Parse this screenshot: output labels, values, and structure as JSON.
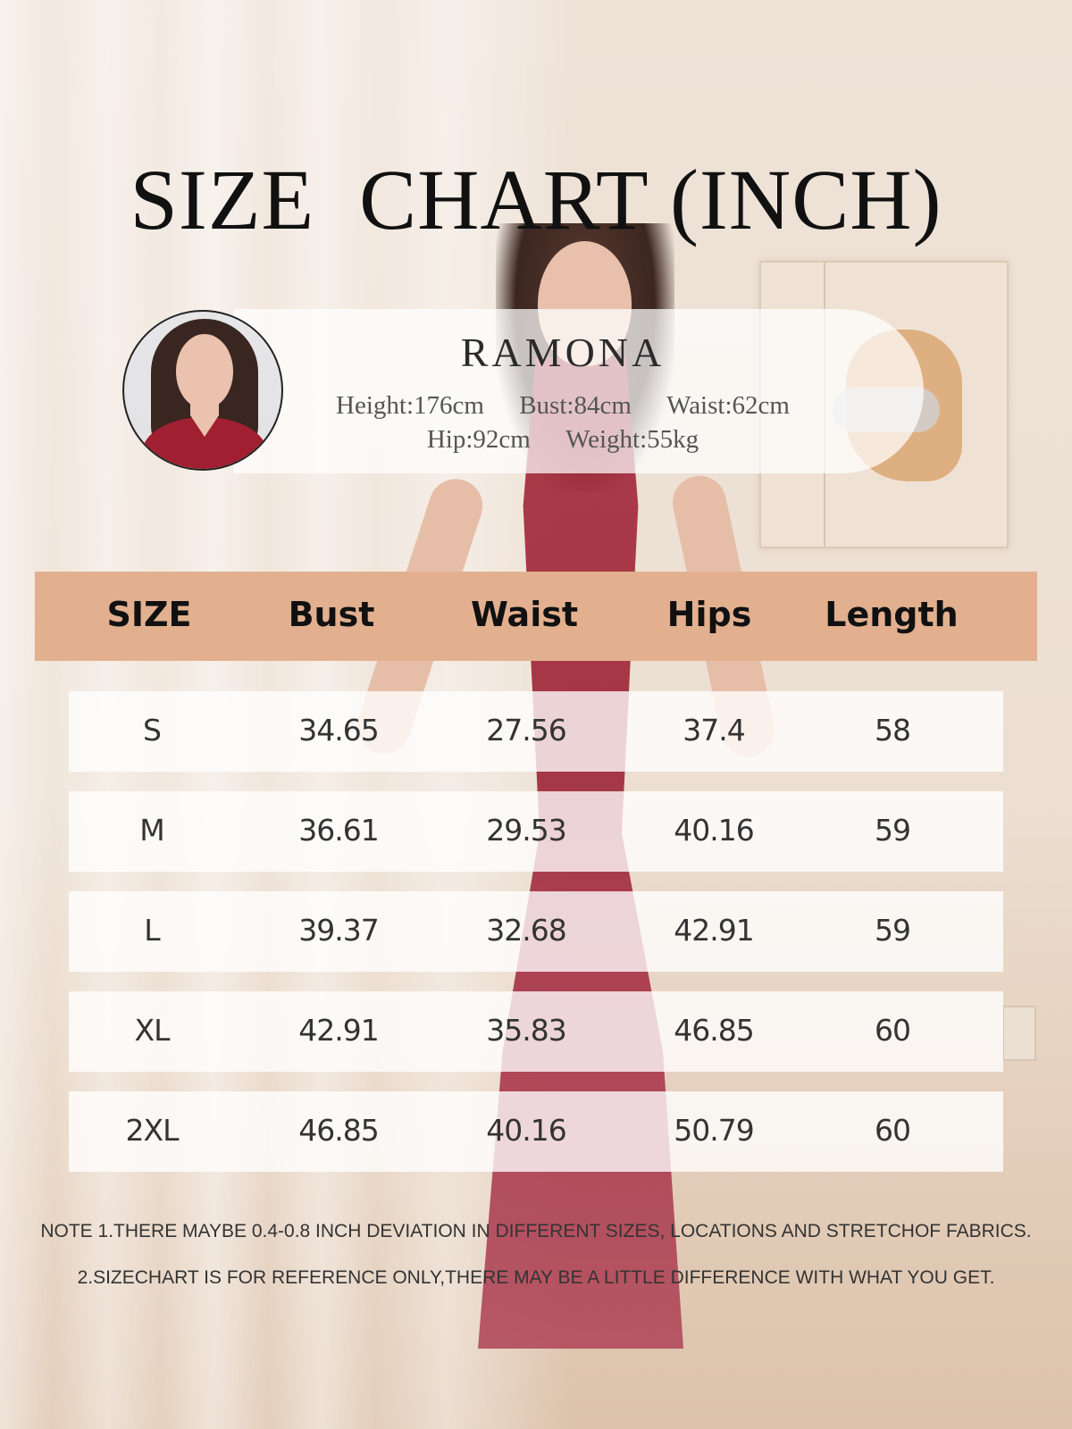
{
  "title": "SIZE  CHART (INCH)",
  "model": {
    "name": "RAMONA",
    "height": "Height:176cm",
    "bust": "Bust:84cm",
    "waist": "Waist:62cm",
    "hip": "Hip:92cm",
    "weight": "Weight:55kg"
  },
  "table": {
    "headers": [
      "SIZE",
      "Bust",
      "Waist",
      "Hips",
      "Length"
    ],
    "rows": [
      [
        "S",
        "34.65",
        "27.56",
        "37.4",
        "58"
      ],
      [
        "M",
        "36.61",
        "29.53",
        "40.16",
        "59"
      ],
      [
        "L",
        "39.37",
        "32.68",
        "42.91",
        "59"
      ],
      [
        "XL",
        "42.91",
        "35.83",
        "46.85",
        "60"
      ],
      [
        "2XL",
        "46.85",
        "40.16",
        "50.79",
        "60"
      ]
    ]
  },
  "notes": [
    "NOTE 1.THERE MAYBE 0.4-0.8 INCH DEVIATION IN DIFFERENT SIZES, LOCATIONS AND STRETCHOF FABRICS.",
    "2.SIZECHART IS FOR REFERENCE ONLY,THERE MAY BE A  LITTLE DIFFERENCE WITH WHAT YOU GET."
  ],
  "colors": {
    "header_bg": "#e2b08f",
    "dress": "#a3283a"
  }
}
